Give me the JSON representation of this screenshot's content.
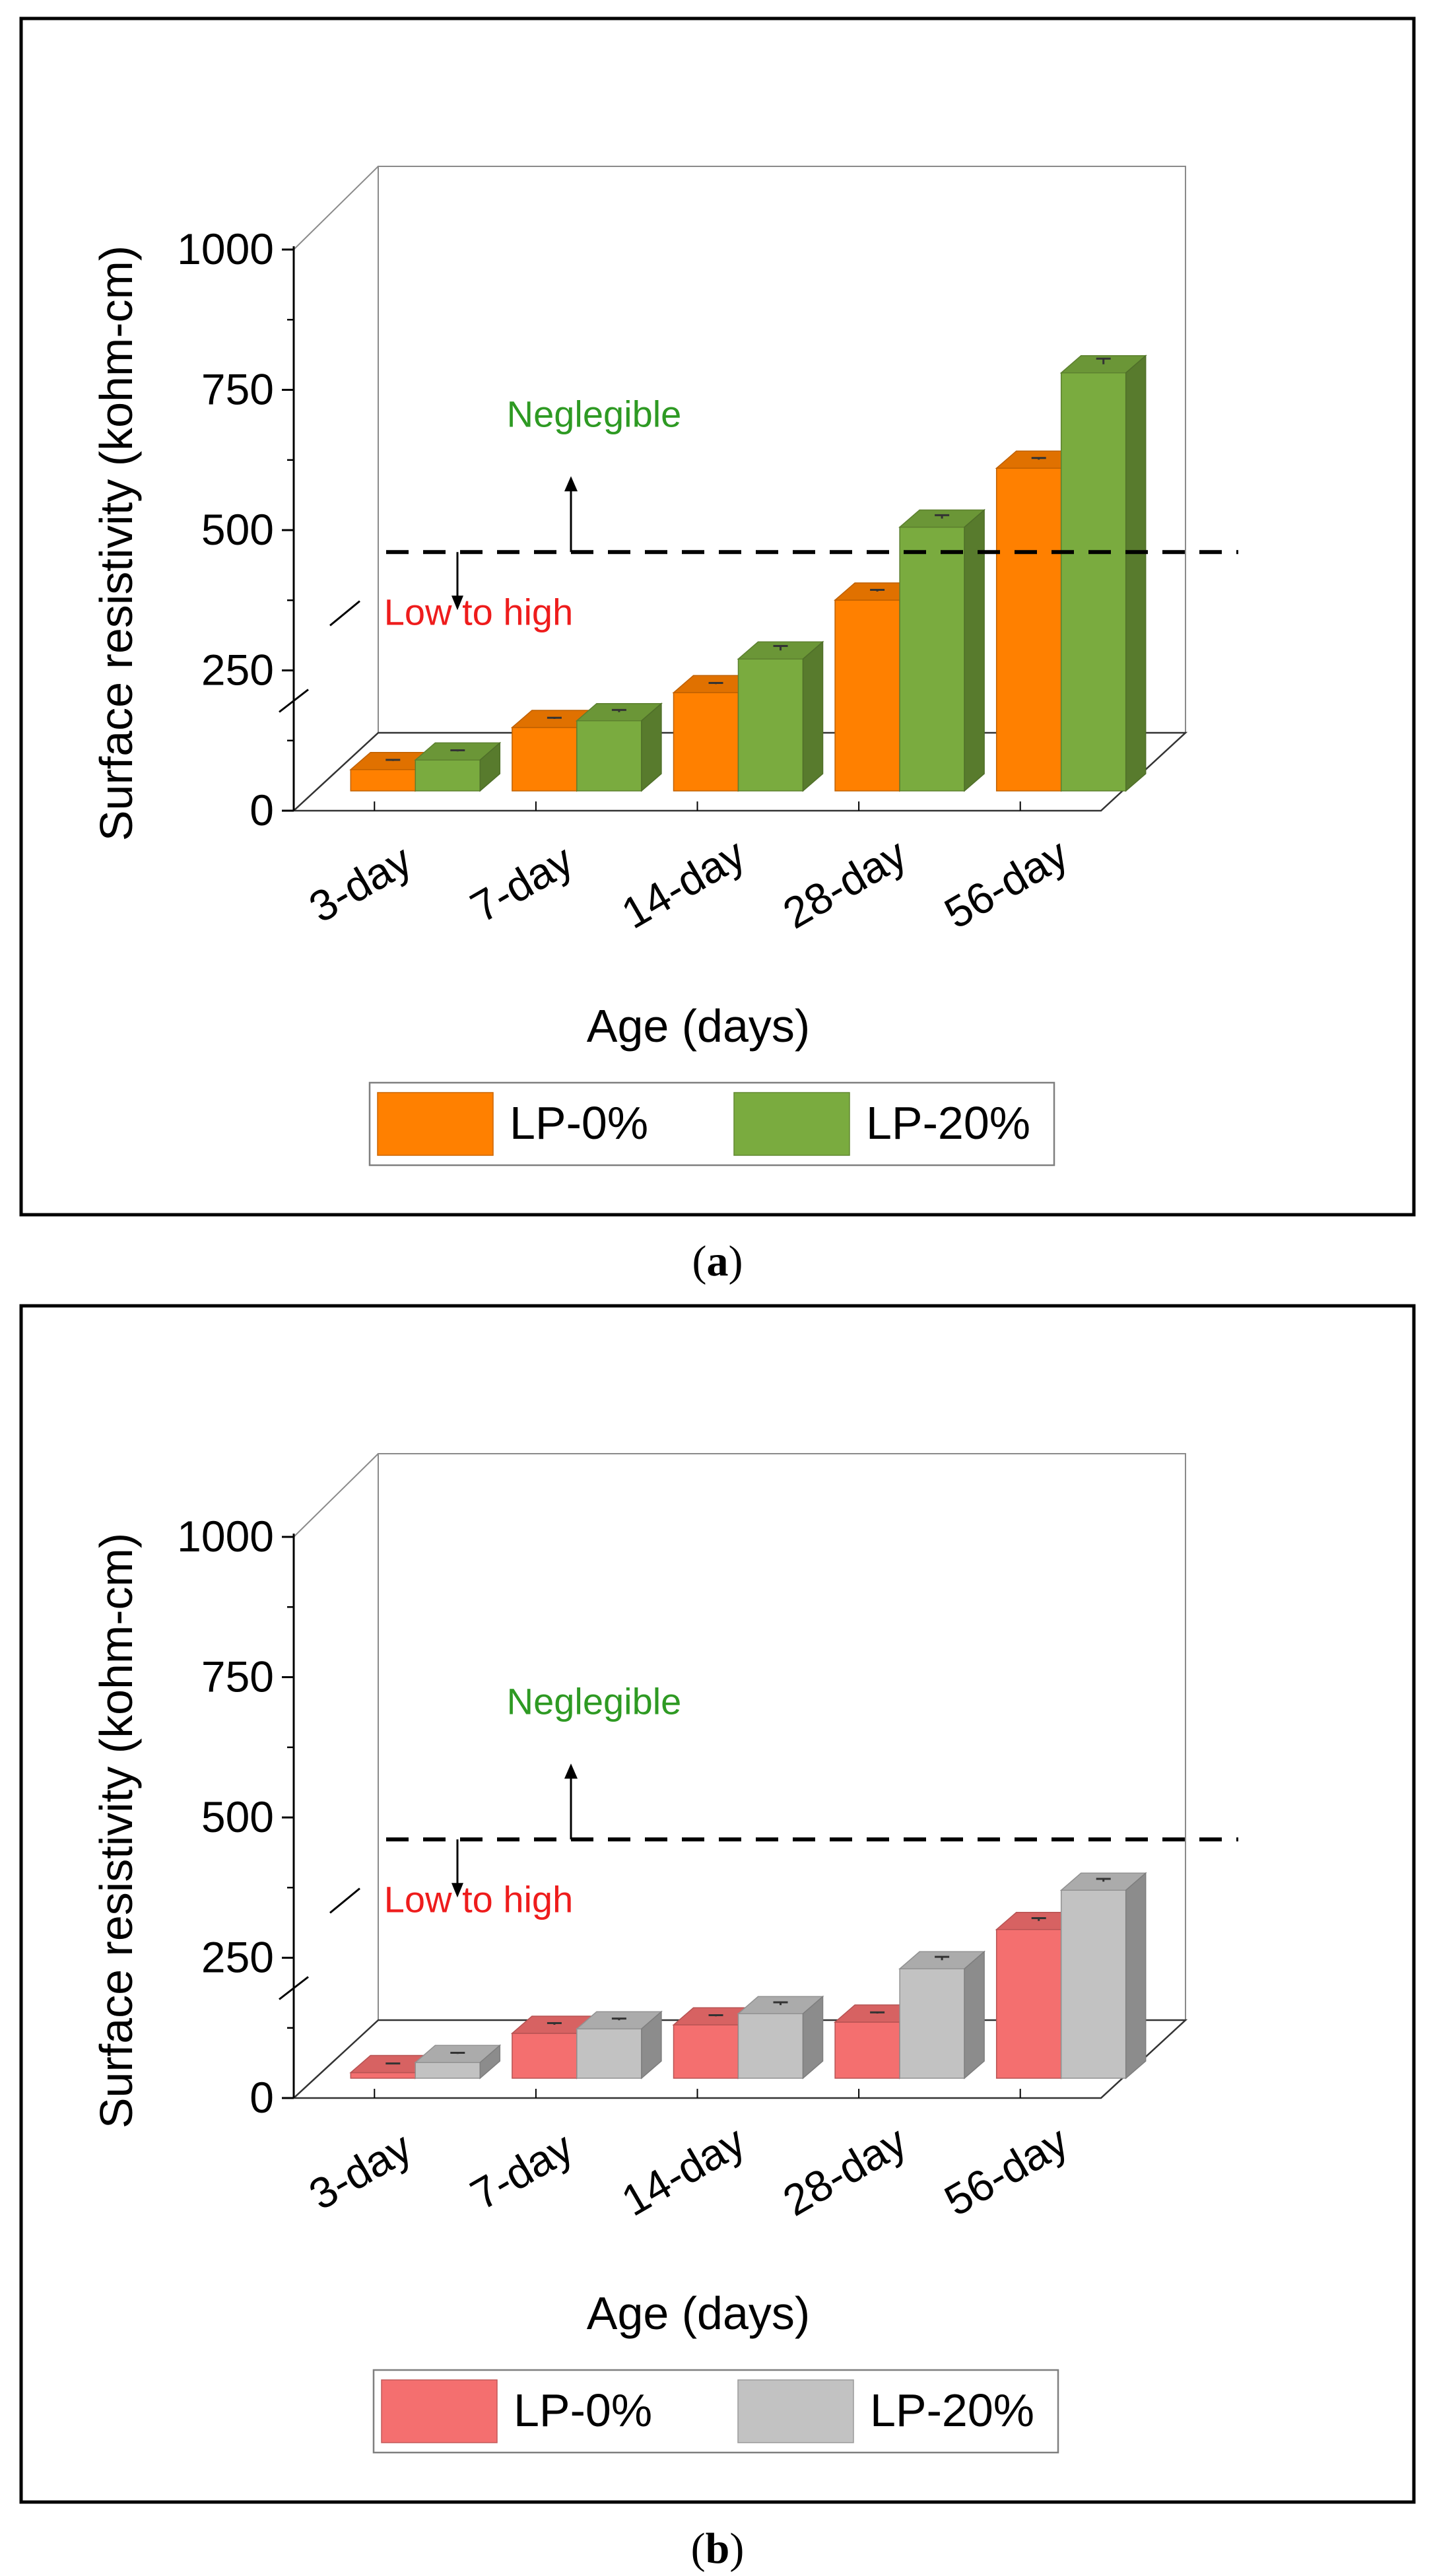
{
  "panels": [
    {
      "caption": "(a)",
      "caption_bold": "a",
      "note_above": "Neglegible",
      "note_below": "Low to high",
      "colors": {
        "s0": "#ff8000",
        "s1": "#7aab3f"
      },
      "chart_data": {
        "type": "bar",
        "title": "",
        "categories": [
          "3-day",
          "7-day",
          "14-day",
          "28-day",
          "56-day"
        ],
        "xlabel": "Age (days)",
        "ylabel": "Surface resistivity (kohm-cm)",
        "yticks": [
          0,
          250,
          500,
          750,
          1000
        ],
        "ylim": [
          0,
          1000
        ],
        "threshold": 355,
        "series": [
          {
            "name": "LP-0%",
            "values": [
              38,
              113,
              175,
              340,
              575
            ],
            "errors": [
              2,
              2,
              2,
              3,
              3
            ]
          },
          {
            "name": "LP-20%",
            "values": [
              55,
              125,
              235,
              470,
              745
            ],
            "errors": [
              2,
              4,
              8,
              6,
              10
            ]
          }
        ]
      }
    },
    {
      "caption": "(b)",
      "caption_bold": "b",
      "note_above": "Neglegible",
      "note_below": "Low to high",
      "colors": {
        "s0": "#f46f6f",
        "s1": "#c2c2c2"
      },
      "chart_data": {
        "type": "bar",
        "title": "",
        "categories": [
          "3-day",
          "7-day",
          "14-day",
          "28-day",
          "56-day"
        ],
        "xlabel": "Age (days)",
        "ylabel": "Surface resistivity (kohm-cm)",
        "yticks": [
          0,
          250,
          500,
          750,
          1000
        ],
        "ylim": [
          0,
          1000
        ],
        "threshold": 355,
        "series": [
          {
            "name": "LP-0%",
            "values": [
              10,
              80,
              95,
              100,
              265
            ],
            "errors": [
              1,
              3,
              2,
              2,
              5
            ]
          },
          {
            "name": "LP-20%",
            "values": [
              28,
              88,
              115,
              195,
              335
            ],
            "errors": [
              2,
              3,
              5,
              6,
              5
            ]
          }
        ]
      }
    }
  ]
}
